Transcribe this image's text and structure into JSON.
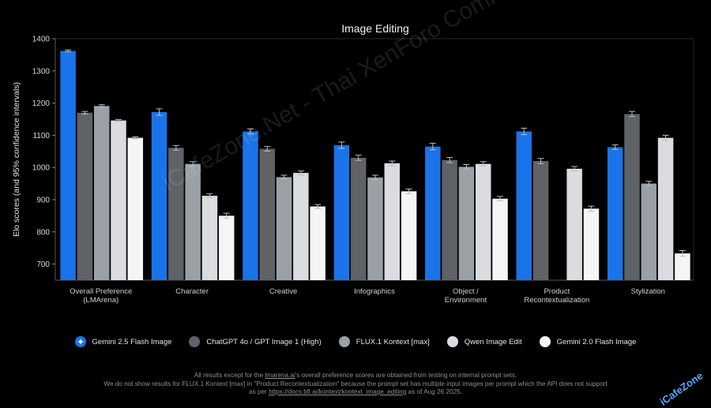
{
  "chart_data": {
    "type": "bar",
    "title": "Image Editing",
    "xlabel": "",
    "ylabel": "Elo scores (and 95% confidence intervals)",
    "ylim": [
      650,
      1400
    ],
    "yticks": [
      700,
      800,
      900,
      1000,
      1100,
      1200,
      1300,
      1400
    ],
    "grid": false,
    "legend_position": "bottom",
    "categories": [
      [
        "Overall Preference",
        "(LMArena)"
      ],
      [
        "Character"
      ],
      [
        "Creative"
      ],
      [
        "Infographics"
      ],
      [
        "Object /",
        "Environment"
      ],
      [
        "Product",
        "Recontextualization"
      ],
      [
        "Stylization"
      ]
    ],
    "series": [
      {
        "name": "Gemini 2.5 Flash Image",
        "color": "#1a73e8",
        "values": [
          1362,
          1172,
          1112,
          1069,
          1065,
          1112,
          1063
        ],
        "errors": [
          3,
          10,
          8,
          10,
          10,
          10,
          7
        ]
      },
      {
        "name": "ChatGPT 4o / GPT Image 1 (High)",
        "color": "#5f6368",
        "values": [
          1170,
          1061,
          1058,
          1030,
          1023,
          1020,
          1166
        ],
        "errors": [
          4,
          7,
          7,
          8,
          8,
          8,
          8
        ]
      },
      {
        "name": "FLUX.1 Kontext [max]",
        "color": "#9aa0a6",
        "values": [
          1191,
          1011,
          970,
          969,
          1002,
          null,
          950
        ],
        "errors": [
          4,
          7,
          6,
          7,
          7,
          null,
          7
        ]
      },
      {
        "name": "Qwen Image Edit",
        "color": "#dadce0",
        "values": [
          1146,
          912,
          983,
          1013,
          1011,
          996,
          1092
        ],
        "errors": [
          3,
          6,
          6,
          7,
          7,
          7,
          8
        ]
      },
      {
        "name": "Gemini 2.0 Flash Image",
        "color": "#f5f5f5",
        "values": [
          1092,
          850,
          879,
          926,
          903,
          872,
          733
        ],
        "errors": [
          3,
          8,
          6,
          7,
          7,
          8,
          9
        ]
      }
    ]
  },
  "legend_icon": "gemini-sparkle-icon",
  "footnote": {
    "line1_before": "All results except for the ",
    "line1_link": "lmarena.ai",
    "line1_after": "'s overall preference scores are obtained from testing on internal prompt sets.",
    "line2": "We do not show results for FLUX.1 Kontext [max] in \"Product Recontextualization\" because the prompt set has multiple input images per prompt which the API does not support",
    "line3_before": "as per ",
    "line3_link": "https://docs.bfl.ai/kontext/kontext_image_editing",
    "line3_after": " as of Aug 26 2025."
  },
  "watermark": "iCafeZone.Net - Thai XenForo Community",
  "corner_watermark": "iCafeZone"
}
